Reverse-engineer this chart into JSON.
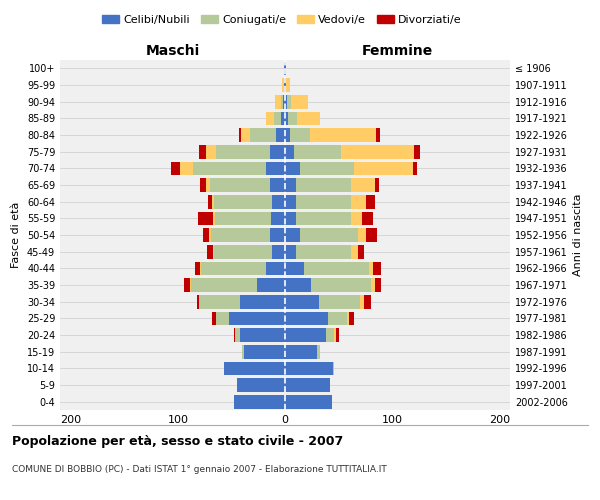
{
  "age_groups": [
    "0-4",
    "5-9",
    "10-14",
    "15-19",
    "20-24",
    "25-29",
    "30-34",
    "35-39",
    "40-44",
    "45-49",
    "50-54",
    "55-59",
    "60-64",
    "65-69",
    "70-74",
    "75-79",
    "80-84",
    "85-89",
    "90-94",
    "95-99",
    "100+"
  ],
  "birth_years": [
    "2002-2006",
    "1997-2001",
    "1992-1996",
    "1987-1991",
    "1982-1986",
    "1977-1981",
    "1972-1976",
    "1967-1971",
    "1962-1966",
    "1957-1961",
    "1952-1956",
    "1947-1951",
    "1942-1946",
    "1937-1941",
    "1932-1936",
    "1927-1931",
    "1922-1926",
    "1917-1921",
    "1912-1916",
    "1907-1911",
    "≤ 1906"
  ],
  "maschi": {
    "celibi": [
      48,
      45,
      57,
      38,
      42,
      52,
      42,
      26,
      18,
      12,
      14,
      13,
      12,
      14,
      18,
      14,
      8,
      4,
      2,
      1,
      1
    ],
    "coniugati": [
      0,
      0,
      0,
      2,
      5,
      12,
      38,
      62,
      60,
      54,
      55,
      52,
      54,
      56,
      68,
      50,
      25,
      6,
      2,
      0,
      0
    ],
    "vedovi": [
      0,
      0,
      0,
      0,
      0,
      0,
      0,
      1,
      1,
      1,
      2,
      2,
      2,
      4,
      12,
      10,
      8,
      8,
      5,
      2,
      0
    ],
    "divorziati": [
      0,
      0,
      0,
      0,
      1,
      4,
      2,
      5,
      5,
      6,
      6,
      14,
      4,
      5,
      8,
      6,
      2,
      0,
      0,
      0,
      0
    ]
  },
  "femmine": {
    "nubili": [
      44,
      42,
      45,
      30,
      38,
      40,
      32,
      24,
      18,
      10,
      14,
      10,
      10,
      10,
      14,
      8,
      5,
      3,
      2,
      1,
      1
    ],
    "coniugate": [
      0,
      0,
      1,
      3,
      8,
      18,
      38,
      56,
      60,
      52,
      54,
      52,
      52,
      52,
      50,
      44,
      18,
      8,
      4,
      0,
      0
    ],
    "vedove": [
      0,
      0,
      0,
      0,
      2,
      2,
      4,
      4,
      4,
      6,
      8,
      10,
      14,
      22,
      55,
      68,
      62,
      22,
      15,
      4,
      0
    ],
    "divorziate": [
      0,
      0,
      0,
      0,
      2,
      4,
      6,
      6,
      8,
      6,
      10,
      10,
      8,
      4,
      4,
      6,
      4,
      0,
      0,
      0,
      0
    ]
  },
  "colors": {
    "celibi_nubili": "#4472C4",
    "coniugati": "#B5C99A",
    "vedovi": "#FFCC66",
    "divorziati": "#C00000"
  },
  "xlim": 210,
  "xticks": [
    -200,
    -100,
    0,
    100,
    200
  ],
  "title": "Popolazione per età, sesso e stato civile - 2007",
  "subtitle": "COMUNE DI BOBBIO (PC) - Dati ISTAT 1° gennaio 2007 - Elaborazione TUTTITALIA.IT",
  "ylabel": "Fasce di età",
  "ylabel_right": "Anni di nascita",
  "xlabel_left": "Maschi",
  "xlabel_right": "Femmine",
  "legend": [
    "Celibi/Nubili",
    "Coniugati/e",
    "Vedovi/e",
    "Divorziati/e"
  ],
  "bg_color": "#f0f0f0"
}
